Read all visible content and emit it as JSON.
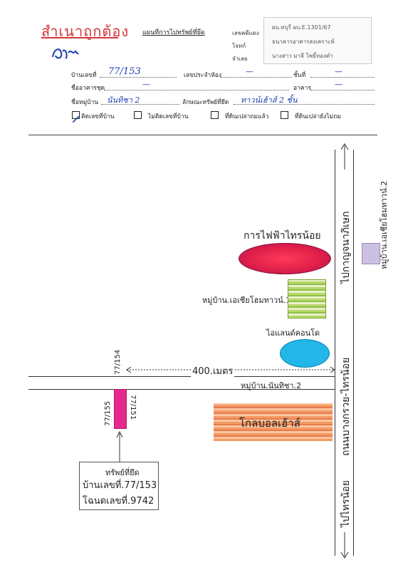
{
  "stamp": {
    "title": "สำเนาถูกต้อง",
    "signature": "ลงชื่อ",
    "heading": "แผนที่การไปทรัพย์ที่ยึด"
  },
  "info_box_right": {
    "case_label": "เลขคดีแดง",
    "case_value": "ผบ.ทบุรี ผบ.E.1301/67",
    "plaintiff_label": "โจทก์",
    "plaintiff_value": "ธนาคารอาคารสงเคราะห์",
    "defendant_label": "จำเลย",
    "defendant_value": "นางสาว มาลี โพธิ์ทองคำ"
  },
  "form": {
    "house_no_label": "บ้านเลขที่",
    "house_no_value": "77/153",
    "id_label": "เลขประจำห้อง",
    "id_value": "—",
    "floor_label": "ชั้นที่",
    "floor_value": "—",
    "building_label": "ชื่ออาคารชุด",
    "building_value": "—",
    "building2_label": "อาคาร",
    "building2_value": "—",
    "village_label": "ชื่อหมู่บ้าน",
    "village_value": "นันทิชา 2",
    "type_label": "ลักษณะทรัพย์ที่ยึด",
    "type_value": "ทาวน์เฮ้าส์ 2 ชั้น",
    "checkboxes": [
      "ติดเลขที่บ้าน",
      "ไม่ติดเลขที่บ้าน",
      "ที่ดินเปล่าถมแล้ว",
      "ที่ดินเปล่ายังไม่ถม"
    ]
  },
  "map": {
    "egat": "การไฟฟ้าไทรน้อย",
    "village_top": "หมู่บ้าน.เอเชียโฮมทาวน์.1",
    "condo": "ไอแลนด์คอนโด",
    "distance": "400.เมตร",
    "village_nanticha": "หมู่บ้าน.นันทิชา.2",
    "golf": "โกลบอลเฮ้าส์",
    "road_main": "ถนนบางกรวย-ไทรน้อย",
    "to_top": "ไปกาญจนาภิเษก",
    "to_bottom": "ไปไทรน้อย",
    "village_right": "หมู่บ้าน.เอเชียโฮมทาวน์.2",
    "house_left": "77/155",
    "house_right": "77/151",
    "house_top": "77/154",
    "property_label": "ทรัพย์ที่ยึด",
    "property_house": "บ้านเลขที่.77/153",
    "property_deed": "โฉนดเลขที่.9742"
  },
  "colors": {
    "stamp_red": "#d4363a",
    "handwriting_blue": "#1c3fb0",
    "egat": "#e0204a",
    "condo": "#23b7e9",
    "golf": "#f39a65",
    "property_marker": "#e52a8c"
  }
}
